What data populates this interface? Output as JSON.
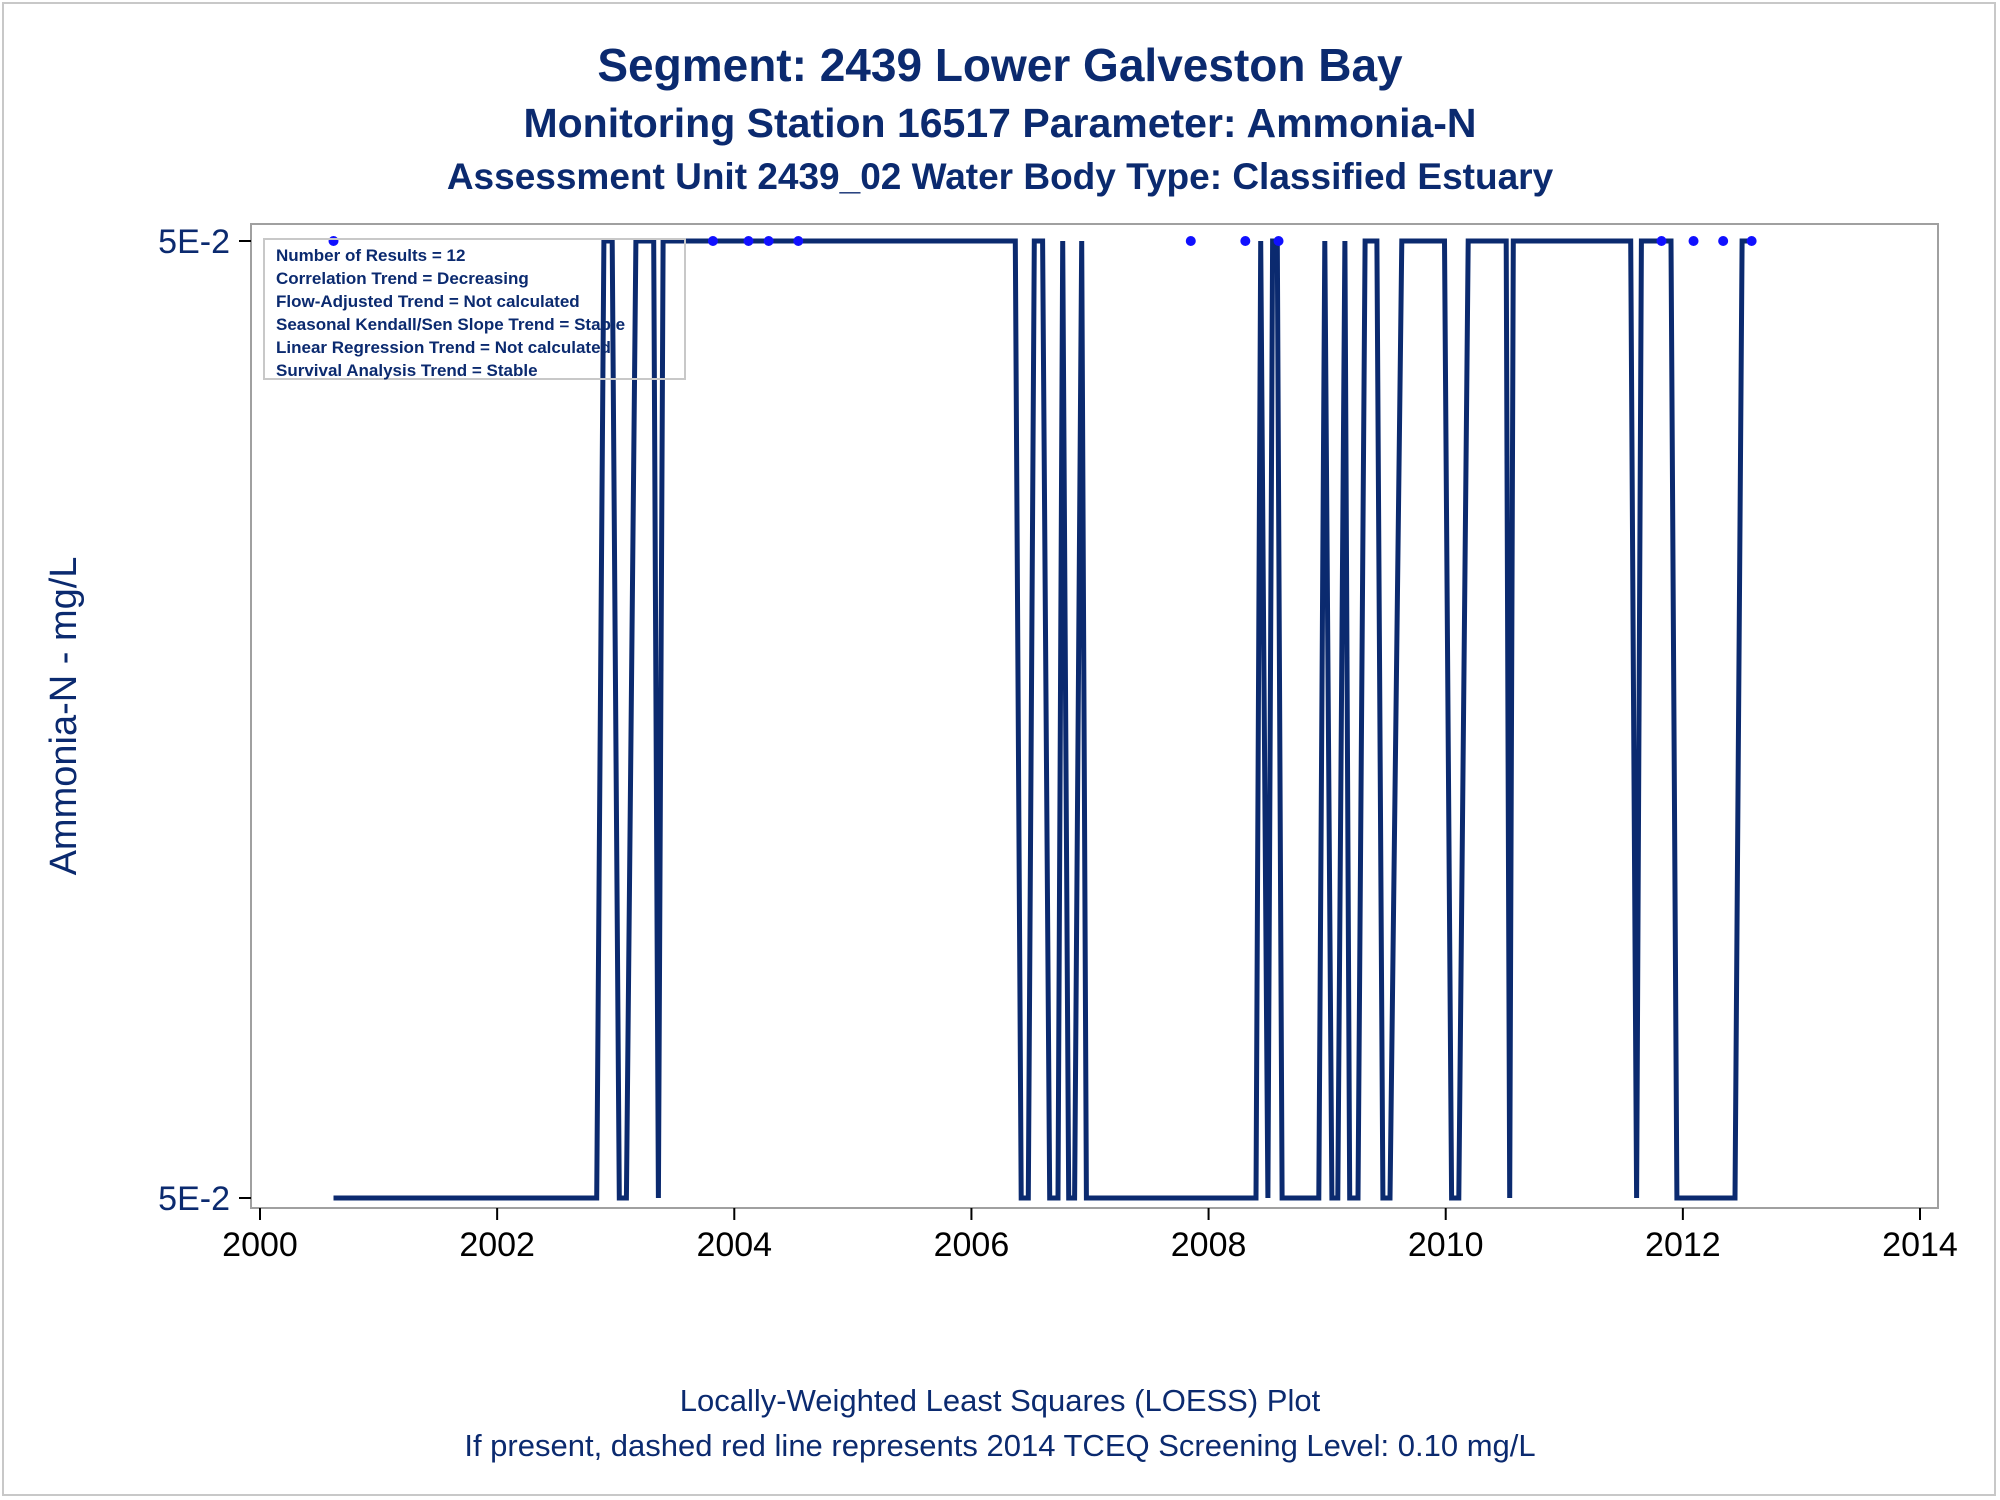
{
  "titles": {
    "line1": "Segment: 2439  Lower Galveston Bay",
    "line2": "Monitoring Station 16517 Parameter: Ammonia-N",
    "line3": "Assessment Unit 2439_02   Water Body Type: Classified Estuary"
  },
  "footnotes": {
    "line1": "Locally-Weighted Least Squares (LOESS) Plot",
    "line2": "If present, dashed red line represents 2014 TCEQ Screening Level: 0.10 mg/L"
  },
  "stats": [
    "Number of Results = 12",
    "Correlation Trend = Decreasing",
    "Flow-Adjusted Trend = Not calculated",
    "Seasonal Kendall/Sen Slope Trend = Stable",
    "Linear Regression Trend = Not calculated",
    "Survival Analysis Trend = Stable"
  ],
  "colors": {
    "text": "#0b2a6f",
    "loess_line": "#0b2a6f",
    "points": "#1010ff",
    "frame": "#a0a0a0"
  },
  "chart_data": {
    "type": "line",
    "xlabel": "",
    "ylabel": "Ammonia-N - mg/L",
    "x_ticks": [
      "2000",
      "2002",
      "2004",
      "2006",
      "2008",
      "2010",
      "2012",
      "2014"
    ],
    "y_ticks": [
      "5E-2",
      "5E-2"
    ],
    "xlim": [
      2000,
      2014
    ],
    "grid": false,
    "series": [
      {
        "kind": "scatter",
        "x": [
          2000.62,
          2003.82,
          2004.12,
          2004.29,
          2004.54,
          2007.85,
          2008.31,
          2008.59,
          2011.82,
          2012.09,
          2012.34,
          2012.58
        ],
        "y": [
          0.05,
          0.05,
          0.05,
          0.05,
          0.05,
          0.05,
          0.05,
          0.05,
          0.05,
          0.05,
          0.05,
          0.05
        ]
      },
      {
        "kind": "loess",
        "level_labels": [
          "low",
          "high"
        ],
        "x": [
          2000.62,
          2002.84,
          2002.9,
          2002.97,
          2003.03,
          2003.09,
          2003.17,
          2003.32,
          2003.36,
          2003.4,
          2003.46,
          2006.37,
          2006.42,
          2006.48,
          2006.53,
          2006.6,
          2006.66,
          2006.73,
          2006.77,
          2006.82,
          2006.87,
          2006.93,
          2006.97,
          2007.03,
          2008.4,
          2008.44,
          2008.5,
          2008.54,
          2008.58,
          2008.62,
          2008.66,
          2008.93,
          2008.98,
          2009.04,
          2009.09,
          2009.15,
          2009.19,
          2009.26,
          2009.32,
          2009.42,
          2009.47,
          2009.53,
          2009.63,
          2009.68,
          2009.99,
          2010.05,
          2010.11,
          2010.19,
          2010.24,
          2010.51,
          2010.54,
          2010.57,
          2011.56,
          2011.61,
          2011.65,
          2011.71,
          2011.9,
          2011.95,
          2012.44,
          2012.5,
          2012.58
        ],
        "level": [
          0,
          0,
          1,
          1,
          0,
          0,
          1,
          1,
          0,
          1,
          1,
          1,
          0,
          0,
          1,
          1,
          0,
          0,
          1,
          0,
          0,
          1,
          0,
          0,
          0,
          1,
          0,
          1,
          1,
          0,
          0,
          0,
          1,
          0,
          0,
          1,
          0,
          0,
          1,
          1,
          0,
          0,
          1,
          1,
          1,
          0,
          0,
          1,
          1,
          1,
          0,
          1,
          1,
          0,
          1,
          1,
          1,
          0,
          0,
          1,
          1
        ]
      }
    ]
  }
}
